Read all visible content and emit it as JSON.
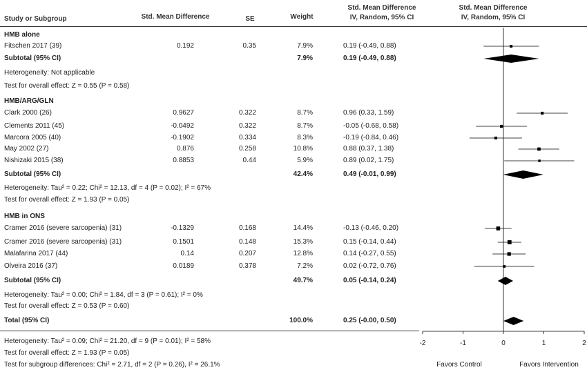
{
  "headers": {
    "study": "Study or Subgroup",
    "smd": "Std. Mean Difference",
    "se": "SE",
    "weight": "Weight",
    "ci_line1": "Std. Mean Difference",
    "ci_line2": "IV, Random, 95% CI",
    "plot_line1": "Std. Mean Difference",
    "plot_line2": "IV, Random, 95% CI"
  },
  "chart_data": {
    "type": "forest",
    "xlim": [
      -2,
      2
    ],
    "xticks": [
      "-2",
      "-1",
      "0",
      "1",
      "2"
    ],
    "xtick_values": [
      -2,
      -1,
      0,
      1,
      2
    ],
    "xlabel_left": "Favors Control",
    "xlabel_right": "Favors Intervention",
    "marker_color": "#000000",
    "groups": [
      {
        "name": "HMB alone",
        "studies": [
          {
            "study": "Fitschen 2017 (39)",
            "smd": "0.192",
            "se": "0.35",
            "weight": "7.9%",
            "ci_text": "0.19 (-0.49, 0.88)",
            "est": 0.19,
            "lo": -0.49,
            "hi": 0.88
          }
        ],
        "subtotal": {
          "label": "Subtotal (95% CI)",
          "weight": "7.9%",
          "ci_text": "0.19 (-0.49, 0.88)",
          "est": 0.19,
          "lo": -0.49,
          "hi": 0.88
        },
        "heterogeneity": "Heterogeneity: Not applicable",
        "overall": "Test for overall effect: Z = 0.55 (P = 0.58)"
      },
      {
        "name": "HMB/ARG/GLN",
        "studies": [
          {
            "study": "Clark 2000 (26)",
            "smd": "0.9627",
            "se": "0.322",
            "weight": "8.7%",
            "ci_text": "0.96 (0.33, 1.59)",
            "est": 0.96,
            "lo": 0.33,
            "hi": 1.59
          },
          {
            "study": "Clements 2011 (45)",
            "smd": "-0.0492",
            "se": "0.322",
            "weight": "8.7%",
            "ci_text": "-0.05 (-0.68, 0.58)",
            "est": -0.05,
            "lo": -0.68,
            "hi": 0.58
          },
          {
            "study": "Marcora 2005 (40)",
            "smd": "-0.1902",
            "se": "0.334",
            "weight": "8.3%",
            "ci_text": "-0.19 (-0.84, 0.46)",
            "est": -0.19,
            "lo": -0.84,
            "hi": 0.46
          },
          {
            "study": "May 2002 (27)",
            "smd": "0.876",
            "se": "0.258",
            "weight": "10.8%",
            "ci_text": "0.88 (0.37, 1.38)",
            "est": 0.88,
            "lo": 0.37,
            "hi": 1.38
          },
          {
            "study": "Nishizaki 2015 (38)",
            "smd": "0.8853",
            "se": "0.44",
            "weight": "5.9%",
            "ci_text": "0.89 (0.02, 1.75)",
            "est": 0.89,
            "lo": 0.02,
            "hi": 1.75
          }
        ],
        "subtotal": {
          "label": "Subtotal (95% CI)",
          "weight": "42.4%",
          "ci_text": "0.49 (-0.01, 0.99)",
          "est": 0.49,
          "lo": -0.01,
          "hi": 0.99
        },
        "heterogeneity": "Heterogeneity: Tau² = 0.22; Chi² = 12.13, df = 4 (P = 0.02); I² = 67%",
        "overall": "Test for overall effect: Z = 1.93 (P = 0.05)"
      },
      {
        "name": "HMB in ONS",
        "studies": [
          {
            "study": "Cramer 2016 (severe sarcopenia) (31)",
            "smd": "-0.1329",
            "se": "0.168",
            "weight": "14.4%",
            "ci_text": "-0.13 (-0.46, 0.20)",
            "est": -0.13,
            "lo": -0.46,
            "hi": 0.2
          },
          {
            "study": "Cramer 2016 (severe sarcopenia) (31)",
            "smd": "0.1501",
            "se": "0.148",
            "weight": "15.3%",
            "ci_text": "0.15 (-0.14, 0.44)",
            "est": 0.15,
            "lo": -0.14,
            "hi": 0.44
          },
          {
            "study": "Malafarina 2017 (44)",
            "smd": "0.14",
            "se": "0.207",
            "weight": "12.8%",
            "ci_text": "0.14 (-0.27, 0.55)",
            "est": 0.14,
            "lo": -0.27,
            "hi": 0.55
          },
          {
            "study": "Olveira 2016 (37)",
            "smd": "0.0189",
            "se": "0.378",
            "weight": "7.2%",
            "ci_text": "0.02 (-0.72, 0.76)",
            "est": 0.02,
            "lo": -0.72,
            "hi": 0.76
          }
        ],
        "subtotal": {
          "label": "Subtotal (95% CI)",
          "weight": "49.7%",
          "ci_text": "0.05 (-0.14, 0.24)",
          "est": 0.05,
          "lo": -0.14,
          "hi": 0.24
        },
        "heterogeneity": "Heterogeneity: Tau² = 0.00; Chi² = 1.84, df = 3 (P = 0.61); I² = 0%",
        "overall": "Test for overall effect: Z = 0.53 (P = 0.60)"
      }
    ],
    "total": {
      "label": "Total (95% CI)",
      "weight": "100.0%",
      "ci_text": "0.25 (-0.00, 0.50)",
      "est": 0.25,
      "lo": -0.0,
      "hi": 0.5
    },
    "footer": [
      "Heterogeneity: Tau² = 0.09; Chi² = 21.20, df = 9 (P = 0.01); I² = 58%",
      "Test for overall effect: Z = 1.93 (P = 0.05)",
      "Test for subgroup differences: Chi² = 2.71, df = 2 (P = 0.26), I² = 26.1%"
    ]
  }
}
